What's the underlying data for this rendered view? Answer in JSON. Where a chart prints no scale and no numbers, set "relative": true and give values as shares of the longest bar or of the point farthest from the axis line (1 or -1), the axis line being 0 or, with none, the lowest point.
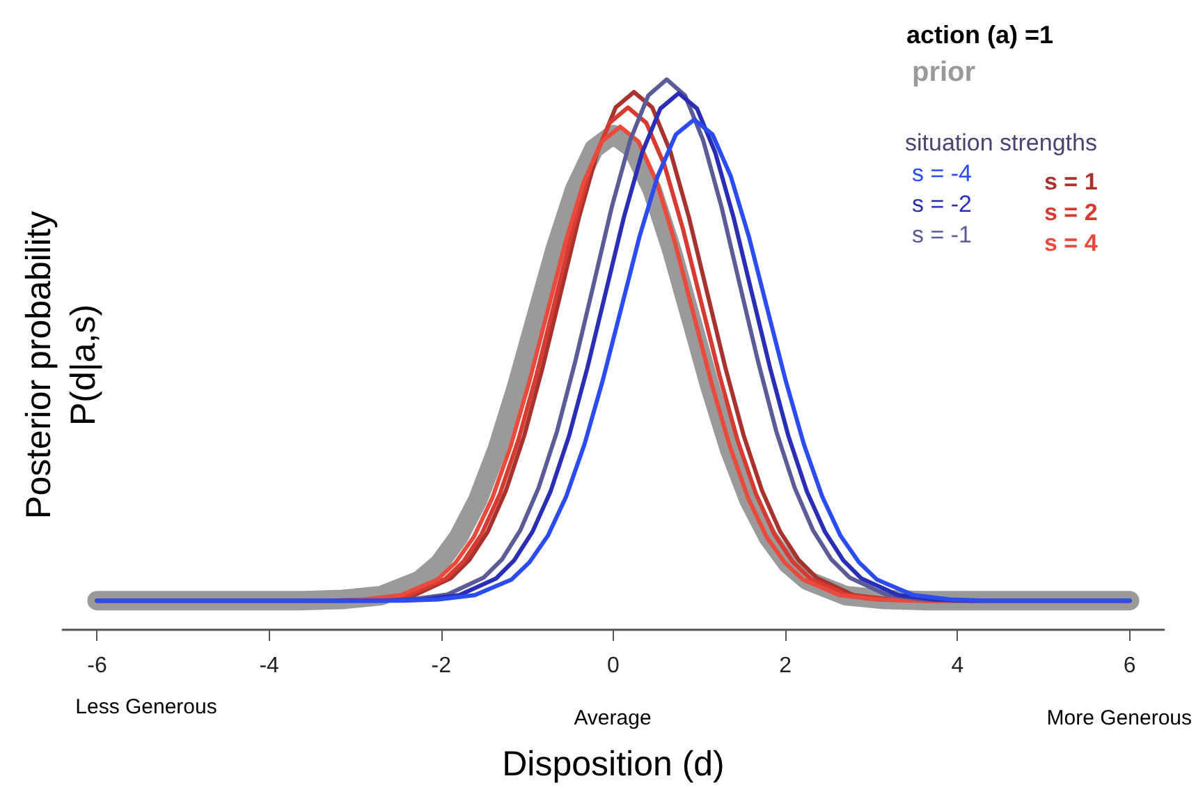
{
  "chart_data": {
    "type": "line",
    "relative": true,
    "xlabel": "Disposition (d)",
    "ylabel": "Posterior probability\nP(d|a,s)",
    "legend_title": "situation strengths",
    "legend": "top right",
    "annotations": [
      "action (a) =1",
      "Less Generous",
      "Average",
      "More Generous"
    ],
    "xlim": [
      -6.4,
      6.4
    ],
    "xticks": [
      -6,
      -4,
      -2,
      0,
      2,
      4,
      6
    ],
    "series": [
      {
        "name": "prior",
        "color": "#9a9a9a",
        "x": [
          -6,
          -3.6,
          -3.15,
          -2.7,
          -2.25,
          -2.025,
          -1.8,
          -1.575,
          -1.35,
          -1.125,
          -0.9,
          -0.675,
          -0.45,
          -0.225,
          0,
          0.225,
          0.45,
          0.675,
          0.9,
          1.125,
          1.35,
          1.575,
          1.8,
          2.025,
          2.25,
          2.7,
          3.15,
          3.6,
          6
        ],
        "values": [
          0.053,
          0.053,
          0.055,
          0.062,
          0.09,
          0.12,
          0.168,
          0.236,
          0.328,
          0.441,
          0.567,
          0.692,
          0.8,
          0.874,
          0.9,
          0.874,
          0.8,
          0.692,
          0.567,
          0.441,
          0.328,
          0.236,
          0.168,
          0.12,
          0.09,
          0.062,
          0.055,
          0.053,
          0.053
        ]
      },
      {
        "name": "s = -4",
        "color": "#2b4cf2",
        "x": [
          -6,
          -2.46,
          -2.035,
          -1.61,
          -1.185,
          -0.973,
          -0.76,
          -0.548,
          -0.335,
          -0.123,
          0.09,
          0.302,
          0.515,
          0.727,
          0.94,
          1.153,
          1.365,
          1.578,
          1.79,
          2.003,
          2.215,
          2.428,
          2.64,
          2.853,
          3.065,
          3.49,
          3.915,
          4.34,
          6
        ],
        "values": [
          0.053,
          0.053,
          0.055,
          0.063,
          0.091,
          0.123,
          0.171,
          0.242,
          0.337,
          0.453,
          0.583,
          0.713,
          0.824,
          0.9,
          0.927,
          0.9,
          0.824,
          0.713,
          0.583,
          0.453,
          0.337,
          0.242,
          0.171,
          0.123,
          0.091,
          0.063,
          0.055,
          0.053,
          0.053
        ]
      },
      {
        "name": "s = -2",
        "color": "#2a2db5",
        "x": [
          -6,
          -2.64,
          -2.215,
          -1.79,
          -1.365,
          -1.153,
          -0.94,
          -0.728,
          -0.515,
          -0.303,
          -0.09,
          0.122,
          0.335,
          0.547,
          0.76,
          0.973,
          1.185,
          1.398,
          1.61,
          1.823,
          2.035,
          2.248,
          2.46,
          2.673,
          2.885,
          3.31,
          3.735,
          4.16,
          6
        ],
        "values": [
          0.053,
          0.053,
          0.055,
          0.063,
          0.093,
          0.126,
          0.178,
          0.252,
          0.352,
          0.475,
          0.612,
          0.749,
          0.867,
          0.947,
          0.975,
          0.947,
          0.867,
          0.749,
          0.612,
          0.475,
          0.352,
          0.252,
          0.178,
          0.126,
          0.093,
          0.063,
          0.055,
          0.053,
          0.053
        ]
      },
      {
        "name": "s = -1",
        "color": "#5b5b97",
        "x": [
          -6,
          -2.78,
          -2.355,
          -1.93,
          -1.505,
          -1.293,
          -1.08,
          -0.868,
          -0.655,
          -0.443,
          -0.23,
          -0.018,
          0.195,
          0.407,
          0.62,
          0.833,
          1.045,
          1.258,
          1.47,
          1.683,
          1.895,
          2.108,
          2.32,
          2.533,
          2.745,
          3.17,
          3.595,
          4.02,
          6
        ],
        "values": [
          0.053,
          0.053,
          0.055,
          0.064,
          0.095,
          0.128,
          0.181,
          0.258,
          0.36,
          0.487,
          0.627,
          0.768,
          0.889,
          0.971,
          1,
          0.971,
          0.889,
          0.768,
          0.627,
          0.487,
          0.36,
          0.258,
          0.181,
          0.128,
          0.095,
          0.064,
          0.055,
          0.053,
          0.053
        ]
      },
      {
        "name": "s = 1",
        "color": "#a8332e",
        "x": [
          -6,
          -3.16,
          -2.735,
          -2.31,
          -1.885,
          -1.673,
          -1.46,
          -1.248,
          -1.035,
          -0.823,
          -0.61,
          -0.398,
          -0.185,
          0.027,
          0.24,
          0.453,
          0.665,
          0.878,
          1.09,
          1.303,
          1.515,
          1.728,
          1.94,
          2.153,
          2.365,
          2.79,
          3.215,
          3.64,
          6
        ],
        "values": [
          0.053,
          0.053,
          0.055,
          0.063,
          0.094,
          0.127,
          0.178,
          0.253,
          0.353,
          0.476,
          0.613,
          0.75,
          0.868,
          0.949,
          0.977,
          0.949,
          0.868,
          0.75,
          0.613,
          0.476,
          0.353,
          0.253,
          0.178,
          0.127,
          0.094,
          0.063,
          0.055,
          0.053,
          0.053
        ]
      },
      {
        "name": "s = 2",
        "color": "#d63a30",
        "x": [
          -6,
          -3.23,
          -2.805,
          -2.38,
          -1.955,
          -1.743,
          -1.53,
          -1.318,
          -1.105,
          -0.893,
          -0.68,
          -0.468,
          -0.255,
          -0.043,
          0.17,
          0.383,
          0.595,
          0.808,
          1.02,
          1.233,
          1.445,
          1.658,
          1.87,
          2.083,
          2.295,
          2.72,
          3.145,
          3.57,
          6
        ],
        "values": [
          0.053,
          0.053,
          0.055,
          0.063,
          0.092,
          0.124,
          0.174,
          0.247,
          0.344,
          0.463,
          0.596,
          0.729,
          0.844,
          0.921,
          0.949,
          0.921,
          0.844,
          0.729,
          0.596,
          0.463,
          0.344,
          0.247,
          0.174,
          0.124,
          0.092,
          0.063,
          0.055,
          0.053,
          0.053
        ]
      },
      {
        "name": "s = 4",
        "color": "#ea4a3c",
        "x": [
          -6,
          -3.32,
          -2.895,
          -2.47,
          -2.045,
          -1.833,
          -1.62,
          -1.408,
          -1.195,
          -0.983,
          -0.77,
          -0.558,
          -0.345,
          -0.133,
          0.08,
          0.293,
          0.505,
          0.718,
          0.93,
          1.143,
          1.355,
          1.568,
          1.78,
          1.993,
          2.205,
          2.63,
          3.055,
          3.48,
          6
        ],
        "values": [
          0.053,
          0.053,
          0.055,
          0.063,
          0.091,
          0.122,
          0.169,
          0.239,
          0.333,
          0.447,
          0.575,
          0.703,
          0.813,
          0.887,
          0.914,
          0.887,
          0.813,
          0.703,
          0.575,
          0.447,
          0.333,
          0.239,
          0.169,
          0.122,
          0.091,
          0.063,
          0.055,
          0.053,
          0.053
        ]
      }
    ]
  }
}
